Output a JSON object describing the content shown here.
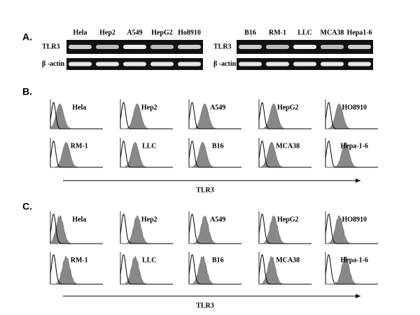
{
  "panel_a": {
    "label": "A.",
    "left": {
      "lanes": [
        "Hela",
        "Hep2",
        "A549",
        "HepG2",
        "Ho8910"
      ],
      "rows": [
        "TLR3",
        "β -actin"
      ]
    },
    "right": {
      "lanes": [
        "B16",
        "RM-1",
        "LLC",
        "MCA38",
        "Hepa1-6"
      ],
      "rows": [
        "TLR3",
        "β -actin"
      ]
    }
  },
  "panel_b": {
    "label": "B.",
    "histograms": [
      "Hela",
      "Hep2",
      "A549",
      "HepG2",
      "HO8910",
      "RM-1",
      "LLC",
      "B16",
      "MCA38",
      "Hepa-1-6"
    ],
    "axis_label": "TLR3"
  },
  "panel_c": {
    "label": "C.",
    "histograms": [
      "Hela",
      "Hep2",
      "A549",
      "HepG2",
      "HO8910",
      "RM-1",
      "LLC",
      "B16",
      "MCA38",
      "Hepa-1-6"
    ],
    "axis_label": "TLR3"
  }
}
